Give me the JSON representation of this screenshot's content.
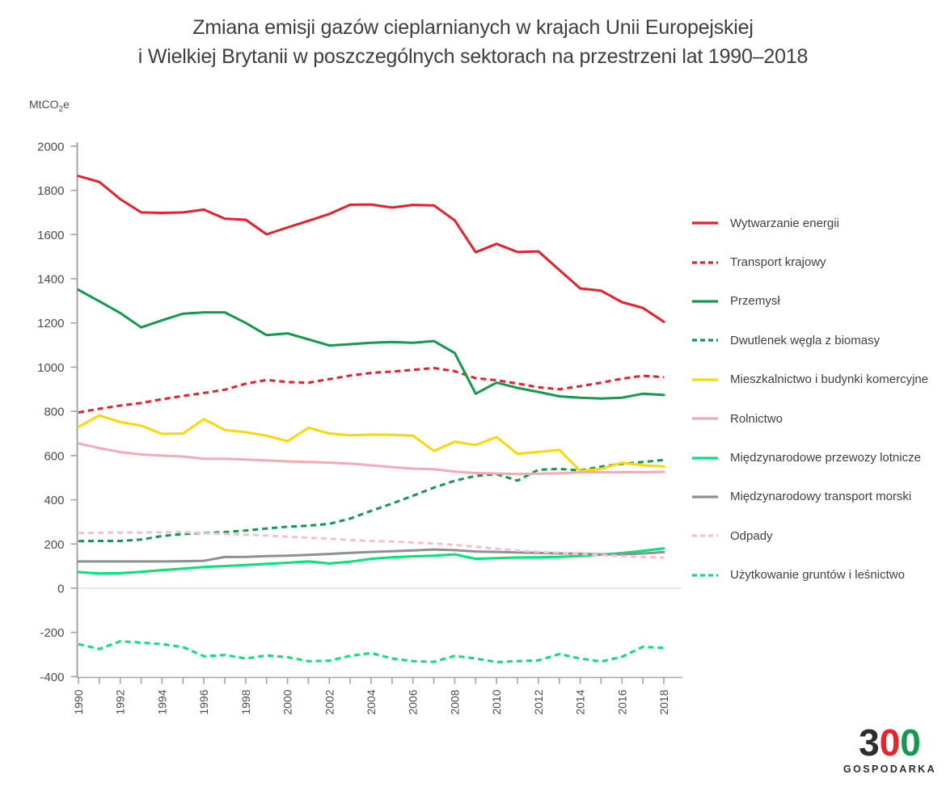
{
  "title": {
    "line1": "Zmiana emisji gazów cieplarnianych w krajach Unii Europejskiej",
    "line2": "i Wielkiej Brytanii w poszczególnych sektorach na przestrzeni lat 1990–2018"
  },
  "y_axis_unit": {
    "main": "MtCO",
    "sub": "2",
    "tail": "e"
  },
  "logo": {
    "digits": [
      "3",
      "0",
      "0"
    ],
    "digit_colors": [
      "#2d2d2d",
      "#e8232a",
      "#149a4e"
    ],
    "subtext": "GOSPODARKA"
  },
  "chart_data": {
    "type": "line",
    "x": [
      1990,
      1991,
      1992,
      1993,
      1994,
      1995,
      1996,
      1997,
      1998,
      1999,
      2000,
      2001,
      2002,
      2003,
      2004,
      2005,
      2006,
      2007,
      2008,
      2009,
      2010,
      2011,
      2012,
      2013,
      2014,
      2015,
      2016,
      2017,
      2018
    ],
    "x_tick_label_years": [
      1990,
      1992,
      1994,
      1996,
      1998,
      2000,
      2002,
      2004,
      2006,
      2008,
      2010,
      2012,
      2014,
      2016,
      2018
    ],
    "ylim": [
      -400,
      2000
    ],
    "y_ticks": [
      2000,
      1800,
      1600,
      1400,
      1200,
      1000,
      800,
      600,
      400,
      200,
      0,
      -200,
      -400
    ],
    "grid": "zero-baseline-only",
    "legend_position": "right",
    "series": [
      {
        "id": "wytwarzanie-energii",
        "name": "Wytwarzanie energii",
        "color": "#e8202b",
        "line_style": "solid",
        "values": [
          1865,
          1838,
          1760,
          1700,
          1698,
          1700,
          1713,
          1672,
          1667,
          1601,
          1632,
          1662,
          1693,
          1735,
          1736,
          1722,
          1734,
          1732,
          1664,
          1520,
          1558,
          1521,
          1524,
          1440,
          1356,
          1346,
          1294,
          1268,
          1205
        ]
      },
      {
        "id": "transport-krajowy",
        "name": "Transport krajowy",
        "color": "#e8202b",
        "line_style": "dashed",
        "values": [
          795,
          812,
          826,
          838,
          855,
          870,
          883,
          898,
          925,
          942,
          933,
          930,
          946,
          962,
          974,
          980,
          988,
          996,
          982,
          950,
          941,
          926,
          909,
          900,
          914,
          930,
          948,
          961,
          955
        ]
      },
      {
        "id": "przemysl",
        "name": "Przemysł",
        "color": "#149a4e",
        "line_style": "solid",
        "values": [
          1350,
          1298,
          1245,
          1180,
          1212,
          1242,
          1248,
          1248,
          1200,
          1145,
          1153,
          1126,
          1098,
          1104,
          1110,
          1114,
          1110,
          1118,
          1064,
          880,
          930,
          906,
          888,
          868,
          862,
          858,
          862,
          880,
          874
        ]
      },
      {
        "id": "dwutlenek-wegla-z-biomasy",
        "name": "Dwutlenek węgla z biomasy",
        "color": "#149a4e",
        "line_style": "dashed",
        "values": [
          213,
          214,
          214,
          220,
          236,
          245,
          250,
          254,
          261,
          270,
          278,
          283,
          291,
          315,
          350,
          383,
          418,
          455,
          486,
          508,
          516,
          487,
          536,
          540,
          533,
          550,
          563,
          571,
          580
        ]
      },
      {
        "id": "mieszkalnictwo-i-budynki-komercyjne",
        "name": "Mieszkalnictwo i budynki komercyjne",
        "color": "#ffd800",
        "line_style": "solid",
        "values": [
          730,
          782,
          752,
          735,
          698,
          700,
          765,
          716,
          706,
          690,
          665,
          726,
          700,
          692,
          695,
          694,
          690,
          621,
          663,
          648,
          684,
          608,
          617,
          626,
          530,
          540,
          568,
          556,
          551
        ]
      },
      {
        "id": "rolnictwo",
        "name": "Rolnictwo",
        "color": "#f7a9b5",
        "line_style": "solid",
        "values": [
          655,
          634,
          616,
          605,
          600,
          596,
          586,
          586,
          582,
          578,
          574,
          571,
          568,
          564,
          556,
          548,
          541,
          538,
          528,
          521,
          519,
          516,
          518,
          520,
          524,
          525,
          525,
          525,
          526
        ]
      },
      {
        "id": "miedzynarodowe-przewozy-lotnicze",
        "name": "Międzynarodowe przewozy lotnicze",
        "color": "#00e573",
        "line_style": "solid",
        "values": [
          73,
          67,
          68,
          74,
          82,
          89,
          96,
          100,
          105,
          110,
          115,
          121,
          112,
          120,
          133,
          140,
          144,
          147,
          153,
          133,
          136,
          139,
          140,
          142,
          146,
          152,
          159,
          169,
          180
        ]
      },
      {
        "id": "miedzynarodowy-transport-morski",
        "name": "Międzynarodowy transport morski",
        "color": "#8d9191",
        "line_style": "solid",
        "values": [
          121,
          121,
          121,
          121,
          121,
          122,
          124,
          141,
          142,
          145,
          147,
          151,
          155,
          160,
          164,
          167,
          171,
          175,
          172,
          166,
          164,
          162,
          160,
          157,
          156,
          153,
          153,
          157,
          163
        ]
      },
      {
        "id": "odpady",
        "name": "Odpady",
        "color": "#f9c0ca",
        "line_style": "dashed",
        "values": [
          250,
          251,
          252,
          252,
          253,
          254,
          249,
          246,
          242,
          238,
          233,
          228,
          224,
          218,
          214,
          211,
          207,
          202,
          196,
          188,
          178,
          170,
          165,
          160,
          155,
          150,
          146,
          141,
          138
        ]
      },
      {
        "id": "uzytkowanie-gruntow-i-lesnictwo",
        "name": "Użytkowanie gruntów i leśnictwo",
        "color": "#00e573",
        "line_style": "dashed",
        "values": [
          -253,
          -275,
          -240,
          -246,
          -253,
          -266,
          -308,
          -302,
          -318,
          -304,
          -312,
          -330,
          -328,
          -306,
          -293,
          -318,
          -330,
          -333,
          -306,
          -318,
          -334,
          -330,
          -326,
          -298,
          -318,
          -332,
          -310,
          -265,
          -270
        ]
      }
    ]
  }
}
